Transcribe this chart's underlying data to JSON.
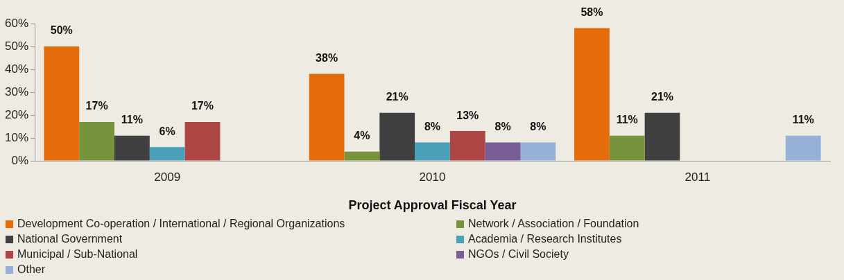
{
  "chart_data": {
    "type": "bar",
    "xlabel": "Project Approval Fiscal Year",
    "categories": [
      "2009",
      "2010",
      "2011"
    ],
    "series": [
      {
        "name": "Development Co-operation / International / Regional Organizations",
        "color": "#e46c0a",
        "values": [
          50,
          38,
          58
        ],
        "value_labels": [
          "50%",
          "38%",
          "58%"
        ]
      },
      {
        "name": "Network / Association / Foundation",
        "color": "#77933c",
        "values": [
          17,
          4,
          11
        ],
        "value_labels": [
          "17%",
          "4%",
          "11%"
        ]
      },
      {
        "name": "National Government",
        "color": "#404040",
        "values": [
          11,
          21,
          21
        ],
        "value_labels": [
          "11%",
          "21%",
          "21%"
        ]
      },
      {
        "name": "Academia / Research Institutes",
        "color": "#4aa0b8",
        "values": [
          6,
          8,
          null
        ],
        "value_labels": [
          "6%",
          "8%",
          null
        ]
      },
      {
        "name": "Municipal / Sub-National",
        "color": "#ad4644",
        "values": [
          17,
          13,
          null
        ],
        "value_labels": [
          "17%",
          "13%",
          null
        ]
      },
      {
        "name": "NGOs / Civil Society",
        "color": "#7a5c96",
        "values": [
          null,
          8,
          null
        ],
        "value_labels": [
          null,
          "8%",
          null
        ]
      },
      {
        "name": "Other",
        "color": "#95b1d8",
        "values": [
          null,
          8,
          11
        ],
        "value_labels": [
          null,
          "8%",
          "11%"
        ]
      }
    ],
    "ylim": [
      0,
      60
    ],
    "yticks": [
      {
        "value": 0,
        "label": "0%"
      },
      {
        "value": 10,
        "label": "10%"
      },
      {
        "value": 20,
        "label": "20%"
      },
      {
        "value": 30,
        "label": "30%"
      },
      {
        "value": 40,
        "label": "40%"
      },
      {
        "value": 50,
        "label": "50%"
      },
      {
        "value": 60,
        "label": "60%"
      }
    ],
    "grid": false,
    "legend": "bottom"
  }
}
